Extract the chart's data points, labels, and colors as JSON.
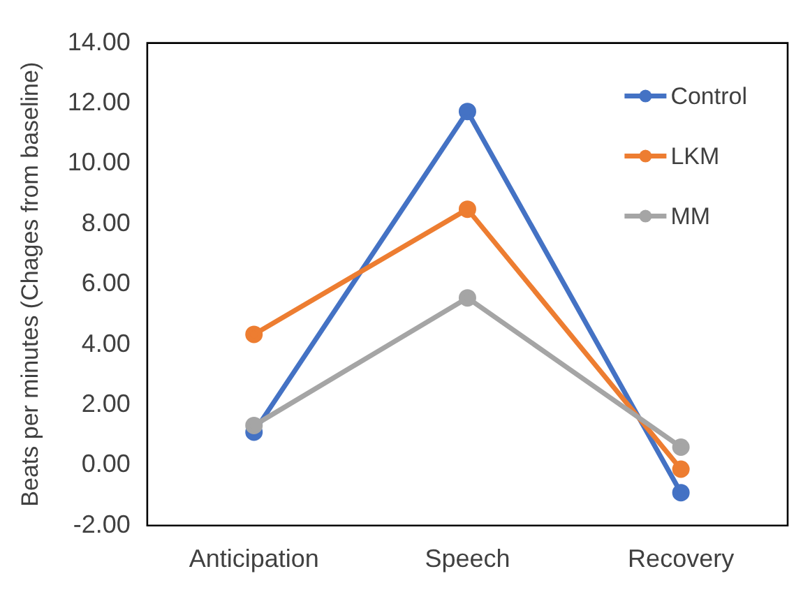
{
  "chart_data": {
    "type": "line",
    "ylabel": "Beats per minutes (Chages from baseline)",
    "categories": [
      "Anticipation",
      "Speech",
      "Recovery"
    ],
    "series": [
      {
        "name": "Control",
        "color": "#4472c4",
        "values": [
          1.1,
          11.73,
          -0.91
        ]
      },
      {
        "name": "LKM",
        "color": "#ed7d31",
        "values": [
          4.34,
          8.49,
          -0.13
        ]
      },
      {
        "name": "MM",
        "color": "#a5a5a5",
        "values": [
          1.32,
          5.55,
          0.6
        ]
      }
    ],
    "ylim": [
      -2,
      14
    ],
    "yticks": [
      {
        "value": -2,
        "label": "-2.00"
      },
      {
        "value": 0,
        "label": "0.00"
      },
      {
        "value": 2,
        "label": "2.00"
      },
      {
        "value": 4,
        "label": "4.00"
      },
      {
        "value": 6,
        "label": "6.00"
      },
      {
        "value": 8,
        "label": "8.00"
      },
      {
        "value": 10,
        "label": "10.00"
      },
      {
        "value": 12,
        "label": "12.00"
      },
      {
        "value": 14,
        "label": "14.00"
      }
    ],
    "grid": false,
    "legend": "top right",
    "marker": "circle",
    "line_style": "solid"
  }
}
